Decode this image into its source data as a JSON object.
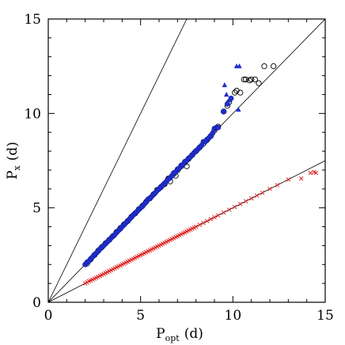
{
  "chart_data": {
    "type": "scatter",
    "title": "",
    "xlabel": "P",
    "xlabel_sub": "opt",
    "xlabel_unit": "(d)",
    "ylabel": "P",
    "ylabel_sub": "x",
    "ylabel_unit": "(d)",
    "xlim": [
      0,
      15
    ],
    "ylim": [
      0,
      15
    ],
    "xticks": [
      0,
      5,
      10,
      15
    ],
    "yticks": [
      0,
      5,
      10,
      15
    ],
    "grid": false,
    "reference_lines": [
      {
        "slope": 2,
        "color": "#000000"
      },
      {
        "slope": 1,
        "color": "#000000"
      },
      {
        "slope": 0.5,
        "color": "#000000"
      }
    ],
    "series": [
      {
        "marker": "circle-open",
        "color": "#000000",
        "points": [
          [
            2.1,
            2.05
          ],
          [
            2.3,
            2.28
          ],
          [
            2.5,
            2.5
          ],
          [
            2.7,
            2.72
          ],
          [
            2.9,
            2.92
          ],
          [
            3.1,
            3.12
          ],
          [
            3.3,
            3.3
          ],
          [
            3.5,
            3.5
          ],
          [
            3.7,
            3.72
          ],
          [
            3.9,
            3.92
          ],
          [
            4.1,
            4.12
          ],
          [
            4.3,
            4.3
          ],
          [
            4.5,
            4.52
          ],
          [
            4.7,
            4.7
          ],
          [
            4.9,
            4.92
          ],
          [
            5.1,
            5.1
          ],
          [
            5.3,
            5.32
          ],
          [
            5.5,
            5.5
          ],
          [
            5.7,
            5.72
          ],
          [
            5.9,
            5.95
          ],
          [
            6.1,
            6.1
          ],
          [
            6.3,
            6.25
          ],
          [
            6.5,
            6.55
          ],
          [
            6.6,
            6.4
          ],
          [
            6.8,
            6.8
          ],
          [
            6.9,
            6.7
          ],
          [
            7.0,
            7.0
          ],
          [
            7.2,
            7.2
          ],
          [
            7.4,
            7.4
          ],
          [
            7.5,
            7.2
          ],
          [
            7.6,
            7.6
          ],
          [
            7.8,
            7.8
          ],
          [
            8.0,
            8.0
          ],
          [
            8.2,
            8.2
          ],
          [
            8.4,
            8.4
          ],
          [
            8.6,
            8.6
          ],
          [
            8.8,
            8.8
          ],
          [
            9.0,
            9.1
          ],
          [
            9.2,
            9.3
          ],
          [
            9.5,
            10.1
          ],
          [
            9.7,
            10.4
          ],
          [
            9.8,
            10.6
          ],
          [
            10.1,
            11.1
          ],
          [
            10.2,
            11.2
          ],
          [
            10.4,
            11.1
          ],
          [
            10.6,
            11.8
          ],
          [
            10.7,
            11.8
          ],
          [
            10.9,
            11.75
          ],
          [
            11.0,
            11.8
          ],
          [
            11.2,
            11.8
          ],
          [
            11.4,
            11.6
          ],
          [
            11.7,
            12.5
          ],
          [
            12.2,
            12.5
          ]
        ]
      },
      {
        "marker": "circle-filled",
        "color": "#1f2fd0",
        "points": [
          [
            2.0,
            2.0
          ],
          [
            2.1,
            2.12
          ],
          [
            2.2,
            2.18
          ],
          [
            2.3,
            2.3
          ],
          [
            2.4,
            2.4
          ],
          [
            2.5,
            2.52
          ],
          [
            2.6,
            2.6
          ],
          [
            2.7,
            2.7
          ],
          [
            2.8,
            2.82
          ],
          [
            2.9,
            2.9
          ],
          [
            3.0,
            3.0
          ],
          [
            3.1,
            3.1
          ],
          [
            3.2,
            3.2
          ],
          [
            3.3,
            3.3
          ],
          [
            3.4,
            3.4
          ],
          [
            3.5,
            3.5
          ],
          [
            3.6,
            3.58
          ],
          [
            3.7,
            3.7
          ],
          [
            3.8,
            3.8
          ],
          [
            3.9,
            3.88
          ],
          [
            4.0,
            4.0
          ],
          [
            4.1,
            4.1
          ],
          [
            4.2,
            4.2
          ],
          [
            4.3,
            4.3
          ],
          [
            4.4,
            4.4
          ],
          [
            4.5,
            4.5
          ],
          [
            4.6,
            4.62
          ],
          [
            4.7,
            4.7
          ],
          [
            4.8,
            4.8
          ],
          [
            4.9,
            4.92
          ],
          [
            5.0,
            5.0
          ],
          [
            5.1,
            5.08
          ],
          [
            5.2,
            5.2
          ],
          [
            5.3,
            5.3
          ],
          [
            5.4,
            5.45
          ],
          [
            5.5,
            5.5
          ],
          [
            5.6,
            5.6
          ],
          [
            5.7,
            5.72
          ],
          [
            5.8,
            5.8
          ],
          [
            5.9,
            5.92
          ],
          [
            6.0,
            6.0
          ],
          [
            6.1,
            6.1
          ],
          [
            6.2,
            6.2
          ],
          [
            6.3,
            6.3
          ],
          [
            6.4,
            6.4
          ],
          [
            6.5,
            6.52
          ],
          [
            6.6,
            6.6
          ],
          [
            6.7,
            6.7
          ],
          [
            6.8,
            6.85
          ],
          [
            6.9,
            6.9
          ],
          [
            7.0,
            7.05
          ],
          [
            7.1,
            7.1
          ],
          [
            7.2,
            7.25
          ],
          [
            7.3,
            7.3
          ],
          [
            7.4,
            7.45
          ],
          [
            7.5,
            7.5
          ],
          [
            7.6,
            7.62
          ],
          [
            7.7,
            7.7
          ],
          [
            7.8,
            7.8
          ],
          [
            7.9,
            7.92
          ],
          [
            8.0,
            8.0
          ],
          [
            8.1,
            8.1
          ],
          [
            8.2,
            8.2
          ],
          [
            8.3,
            8.3
          ],
          [
            8.4,
            8.5
          ],
          [
            8.5,
            8.5
          ],
          [
            8.6,
            8.62
          ],
          [
            8.7,
            8.7
          ],
          [
            8.8,
            8.8
          ],
          [
            8.9,
            8.95
          ],
          [
            9.0,
            9.2
          ],
          [
            9.1,
            9.25
          ],
          [
            9.2,
            9.25
          ],
          [
            9.5,
            10.1
          ],
          [
            9.7,
            10.5
          ],
          [
            9.9,
            10.8
          ]
        ]
      },
      {
        "marker": "triangle-filled",
        "color": "#1f2fd0",
        "points": [
          [
            9.55,
            11.5
          ],
          [
            9.65,
            11.0
          ],
          [
            10.2,
            12.5
          ],
          [
            10.35,
            12.5
          ],
          [
            10.3,
            10.2
          ],
          [
            9.8,
            10.7
          ]
        ]
      },
      {
        "marker": "cross",
        "color": "#e02020",
        "points": [
          [
            2.0,
            1.0
          ],
          [
            2.1,
            1.05
          ],
          [
            2.2,
            1.12
          ],
          [
            2.3,
            1.15
          ],
          [
            2.4,
            1.2
          ],
          [
            2.5,
            1.25
          ],
          [
            2.6,
            1.3
          ],
          [
            2.7,
            1.35
          ],
          [
            2.8,
            1.4
          ],
          [
            2.9,
            1.45
          ],
          [
            3.0,
            1.5
          ],
          [
            3.1,
            1.55
          ],
          [
            3.2,
            1.6
          ],
          [
            3.3,
            1.65
          ],
          [
            3.4,
            1.7
          ],
          [
            3.5,
            1.75
          ],
          [
            3.6,
            1.8
          ],
          [
            3.7,
            1.85
          ],
          [
            3.8,
            1.9
          ],
          [
            3.9,
            1.95
          ],
          [
            4.0,
            2.0
          ],
          [
            4.1,
            2.05
          ],
          [
            4.2,
            2.1
          ],
          [
            4.3,
            2.15
          ],
          [
            4.4,
            2.2
          ],
          [
            4.5,
            2.25
          ],
          [
            4.6,
            2.3
          ],
          [
            4.7,
            2.35
          ],
          [
            4.8,
            2.4
          ],
          [
            4.9,
            2.45
          ],
          [
            5.0,
            2.5
          ],
          [
            5.1,
            2.55
          ],
          [
            5.2,
            2.6
          ],
          [
            5.3,
            2.65
          ],
          [
            5.4,
            2.7
          ],
          [
            5.5,
            2.75
          ],
          [
            5.6,
            2.8
          ],
          [
            5.7,
            2.85
          ],
          [
            5.8,
            2.9
          ],
          [
            5.9,
            2.95
          ],
          [
            6.0,
            3.0
          ],
          [
            6.1,
            3.05
          ],
          [
            6.2,
            3.1
          ],
          [
            6.3,
            3.15
          ],
          [
            6.4,
            3.2
          ],
          [
            6.5,
            3.25
          ],
          [
            6.6,
            3.3
          ],
          [
            6.7,
            3.35
          ],
          [
            6.8,
            3.4
          ],
          [
            6.9,
            3.45
          ],
          [
            7.0,
            3.5
          ],
          [
            7.1,
            3.55
          ],
          [
            7.2,
            3.6
          ],
          [
            7.3,
            3.65
          ],
          [
            7.4,
            3.7
          ],
          [
            7.5,
            3.75
          ],
          [
            7.6,
            3.8
          ],
          [
            7.7,
            3.85
          ],
          [
            7.8,
            3.9
          ],
          [
            7.9,
            3.95
          ],
          [
            8.0,
            4.0
          ],
          [
            8.2,
            4.1
          ],
          [
            8.4,
            4.2
          ],
          [
            8.6,
            4.3
          ],
          [
            8.8,
            4.4
          ],
          [
            9.0,
            4.5
          ],
          [
            9.2,
            4.6
          ],
          [
            9.5,
            4.75
          ],
          [
            9.8,
            4.9
          ],
          [
            10.1,
            5.05
          ],
          [
            10.4,
            5.2
          ],
          [
            10.7,
            5.35
          ],
          [
            11.0,
            5.5
          ],
          [
            11.3,
            5.65
          ],
          [
            11.6,
            5.8
          ],
          [
            12.0,
            6.0
          ],
          [
            12.4,
            6.2
          ],
          [
            13.0,
            6.5
          ],
          [
            13.7,
            6.55
          ],
          [
            14.2,
            6.85
          ],
          [
            14.4,
            6.9
          ],
          [
            14.5,
            6.85
          ]
        ]
      }
    ]
  }
}
